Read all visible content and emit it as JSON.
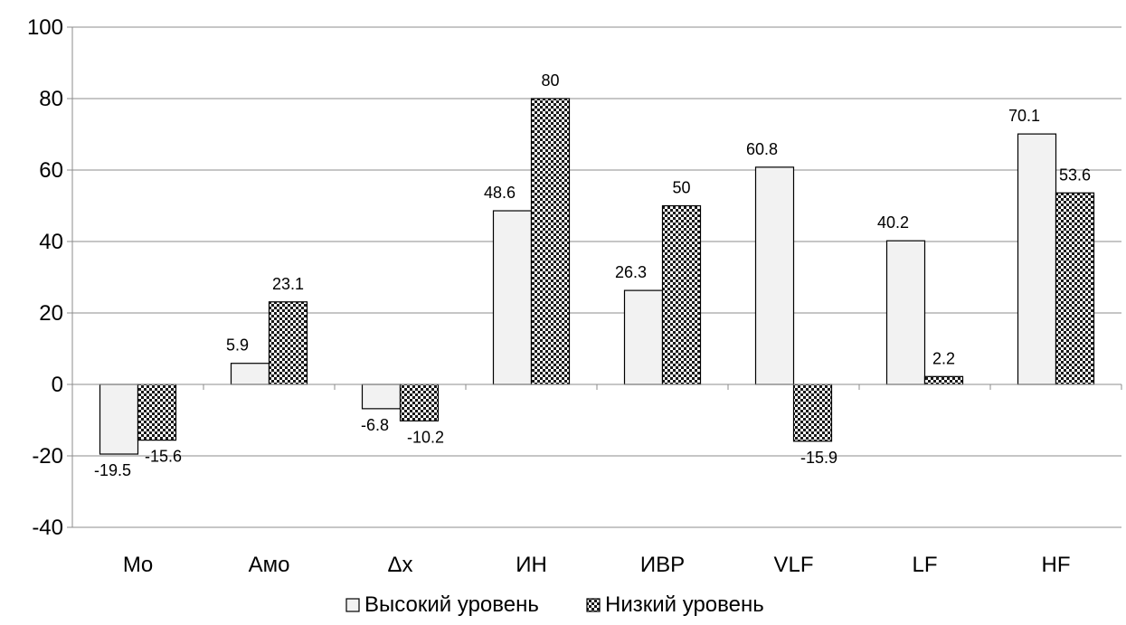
{
  "chart_data": {
    "type": "bar",
    "categories": [
      "Mo",
      "Амо",
      "Δx",
      "ИН",
      "ИВР",
      "VLF",
      "LF",
      "HF"
    ],
    "series": [
      {
        "name": "Высокий уровень",
        "values": [
          -19.5,
          5.9,
          -6.8,
          48.6,
          26.3,
          60.8,
          40.2,
          70.1
        ],
        "labels": [
          "-19.5",
          "5.9",
          "-6.8",
          "48.6",
          "26.3",
          "60.8",
          "40.2",
          "70.1"
        ],
        "fill": "#f2f2f2",
        "pattern": "none"
      },
      {
        "name": "Низкий уровень",
        "values": [
          -15.6,
          23.1,
          -10.2,
          80,
          50,
          -15.9,
          2.2,
          53.6
        ],
        "labels": [
          "-15.6",
          "23.1",
          "-10.2",
          "80",
          "50",
          "-15.9",
          "2.2",
          "53.6"
        ],
        "fill": "#222222",
        "pattern": "checker"
      }
    ],
    "ylim": [
      -40,
      100
    ],
    "yticks": [
      -40,
      -20,
      0,
      20,
      40,
      60,
      80,
      100
    ],
    "ytick_labels": [
      "-40",
      "-20",
      "0",
      "20",
      "40",
      "60",
      "80",
      "100"
    ],
    "grid": true,
    "legend_position": "bottom-center"
  }
}
